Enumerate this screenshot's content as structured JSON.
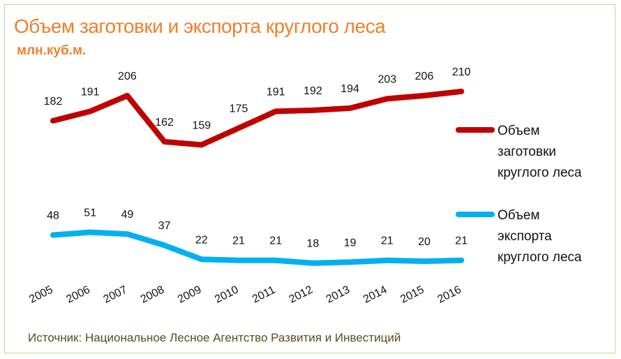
{
  "chart_data": {
    "type": "line",
    "title": "Объем заготовки и экспорта круглого леса",
    "subtitle": "млн.куб.м.",
    "x": [
      "2005",
      "2006",
      "2007",
      "2008",
      "2009",
      "2010",
      "2011",
      "2012",
      "2013",
      "2014",
      "2015",
      "2016"
    ],
    "series": [
      {
        "name_lines": [
          "Объем",
          "заготовки",
          "круглого леса"
        ],
        "color": "#c00000",
        "values": [
          182,
          191,
          206,
          162,
          159,
          175,
          191,
          192,
          194,
          203,
          206,
          210
        ]
      },
      {
        "name_lines": [
          "Объем",
          "экспорта",
          "круглого леса"
        ],
        "color": "#00b0f0",
        "values": [
          48,
          51,
          49,
          37,
          22,
          21,
          21,
          18,
          19,
          21,
          20,
          21
        ]
      }
    ],
    "legend": "right",
    "grid": false
  },
  "source": "Источник: Национальное Лесное Агентство Развития и Инвестиций"
}
